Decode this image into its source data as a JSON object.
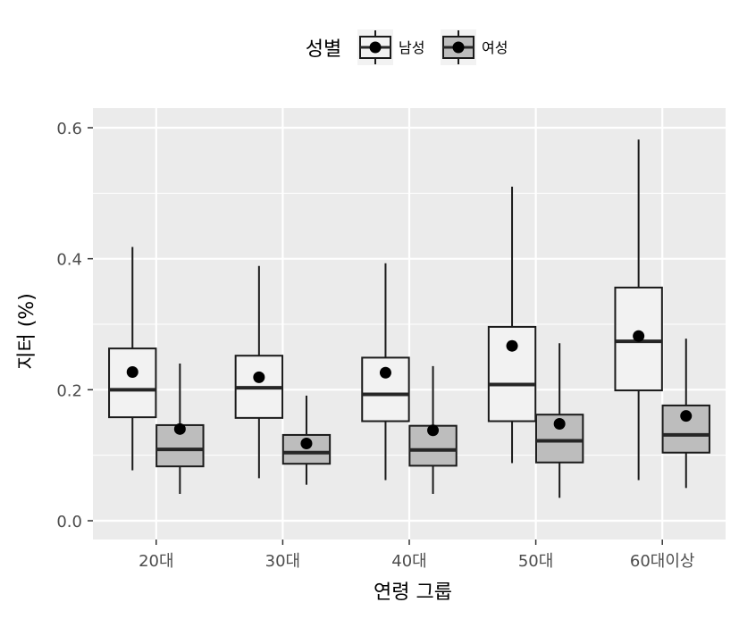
{
  "chart_data": {
    "type": "boxplot",
    "title": "",
    "xlabel": "연령 그룹",
    "ylabel": "지터 (%)",
    "ylim": [
      -0.03,
      0.625
    ],
    "y_ticks": [
      0.0,
      0.2,
      0.4,
      0.6
    ],
    "y_tick_labels": [
      "0.0",
      "0.2",
      "0.4",
      "0.6"
    ],
    "categories": [
      "20대",
      "30대",
      "40대",
      "50대",
      "60대이상"
    ],
    "grid": true,
    "legend": {
      "title": "성별",
      "position": "top"
    },
    "series": [
      {
        "name": "남성",
        "fill": "#f2f2f2",
        "boxes": [
          {
            "min": 0.077,
            "q1": 0.158,
            "median": 0.2,
            "q3": 0.263,
            "max": 0.418,
            "mean": 0.227
          },
          {
            "min": 0.065,
            "q1": 0.157,
            "median": 0.203,
            "q3": 0.252,
            "max": 0.389,
            "mean": 0.219
          },
          {
            "min": 0.062,
            "q1": 0.152,
            "median": 0.193,
            "q3": 0.249,
            "max": 0.393,
            "mean": 0.226
          },
          {
            "min": 0.088,
            "q1": 0.152,
            "median": 0.208,
            "q3": 0.296,
            "max": 0.51,
            "mean": 0.267
          },
          {
            "min": 0.062,
            "q1": 0.199,
            "median": 0.274,
            "q3": 0.356,
            "max": 0.582,
            "mean": 0.282
          }
        ]
      },
      {
        "name": "여성",
        "fill": "#bdbdbd",
        "boxes": [
          {
            "min": 0.041,
            "q1": 0.083,
            "median": 0.109,
            "q3": 0.146,
            "max": 0.24,
            "mean": 0.14
          },
          {
            "min": 0.055,
            "q1": 0.087,
            "median": 0.104,
            "q3": 0.131,
            "max": 0.191,
            "mean": 0.118
          },
          {
            "min": 0.041,
            "q1": 0.084,
            "median": 0.108,
            "q3": 0.145,
            "max": 0.236,
            "mean": 0.138
          },
          {
            "min": 0.035,
            "q1": 0.089,
            "median": 0.122,
            "q3": 0.162,
            "max": 0.271,
            "mean": 0.148
          },
          {
            "min": 0.05,
            "q1": 0.104,
            "median": 0.131,
            "q3": 0.176,
            "max": 0.278,
            "mean": 0.16
          }
        ]
      }
    ]
  }
}
